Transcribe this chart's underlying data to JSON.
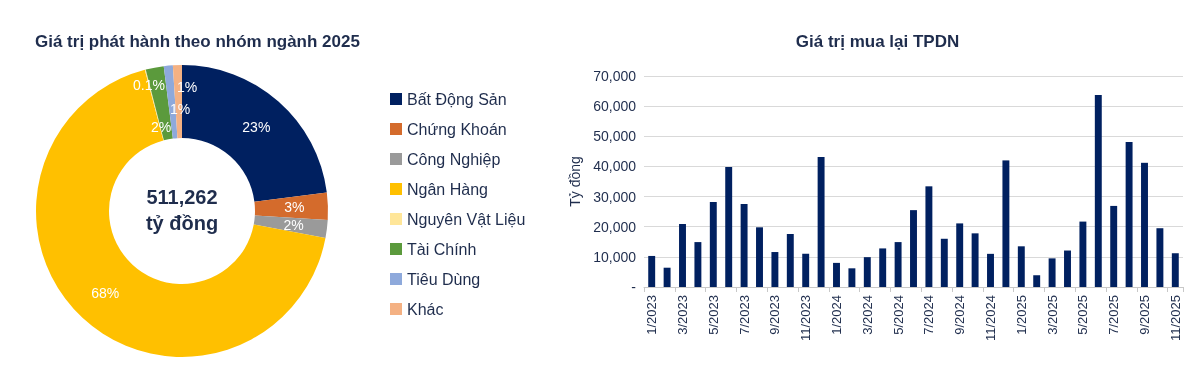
{
  "chart_data": [
    {
      "type": "donut",
      "title": "Giá trị phát hành theo nhóm ngành 2025",
      "categories": [
        "Bất Động Sản",
        "Chứng Khoán",
        "Công Nghiệp",
        "Ngân Hàng",
        "Nguyên Vật Liệu",
        "Tài Chính",
        "Tiêu Dùng",
        "Khác"
      ],
      "values": [
        23,
        3,
        2,
        68,
        0.1,
        2,
        1,
        1
      ],
      "colors": [
        "#002060",
        "#d46b2c",
        "#9a9a9a",
        "#ffc000",
        "#ffe699",
        "#5b9a3c",
        "#8ea9db",
        "#f4b183"
      ],
      "value_labels": [
        "23%",
        "3%",
        "2%",
        "68%",
        "0.1%",
        "2%",
        "1%",
        "1%"
      ],
      "legend": "right",
      "annotations": [
        "511,262\ntỷ đồng"
      ]
    },
    {
      "type": "bar",
      "title": "Giá trị mua lại TPDN",
      "ylabel": "Tỷ đồng",
      "categories": [
        "1/2023",
        null,
        "3/2023",
        null,
        "5/2023",
        null,
        "7/2023",
        null,
        "9/2023",
        null,
        "11/2023",
        null,
        "1/2024",
        null,
        "3/2024",
        null,
        "5/2024",
        null,
        "7/2024",
        null,
        "9/2024",
        null,
        "11/2024",
        null,
        "1/2025",
        null,
        "3/2025",
        null,
        "5/2025",
        null,
        "7/2025",
        null,
        "9/2025",
        null,
        "11/2025"
      ],
      "series": [
        {
          "color": "#002060",
          "values": [
            10300,
            6400,
            20900,
            14900,
            28200,
            39800,
            27500,
            19800,
            11600,
            17600,
            11000,
            43100,
            8000,
            6200,
            9900,
            12800,
            14900,
            25500,
            33400,
            16000,
            21100,
            17800,
            11000,
            42000,
            13500,
            3900,
            9500,
            12100,
            21700,
            63700,
            26900,
            48100,
            41200,
            19500,
            11200
          ]
        }
      ],
      "ylim": [
        0,
        70000
      ],
      "yticks": [
        {
          "value": 0,
          "label": "-"
        },
        {
          "value": 10000,
          "label": "10,000"
        },
        {
          "value": 20000,
          "label": "20,000"
        },
        {
          "value": 30000,
          "label": "30,000"
        },
        {
          "value": 40000,
          "label": "40,000"
        },
        {
          "value": 50000,
          "label": "50,000"
        },
        {
          "value": 60000,
          "label": "60,000"
        },
        {
          "value": 70000,
          "label": "70,000"
        }
      ],
      "grid": "y",
      "legend": false
    }
  ]
}
